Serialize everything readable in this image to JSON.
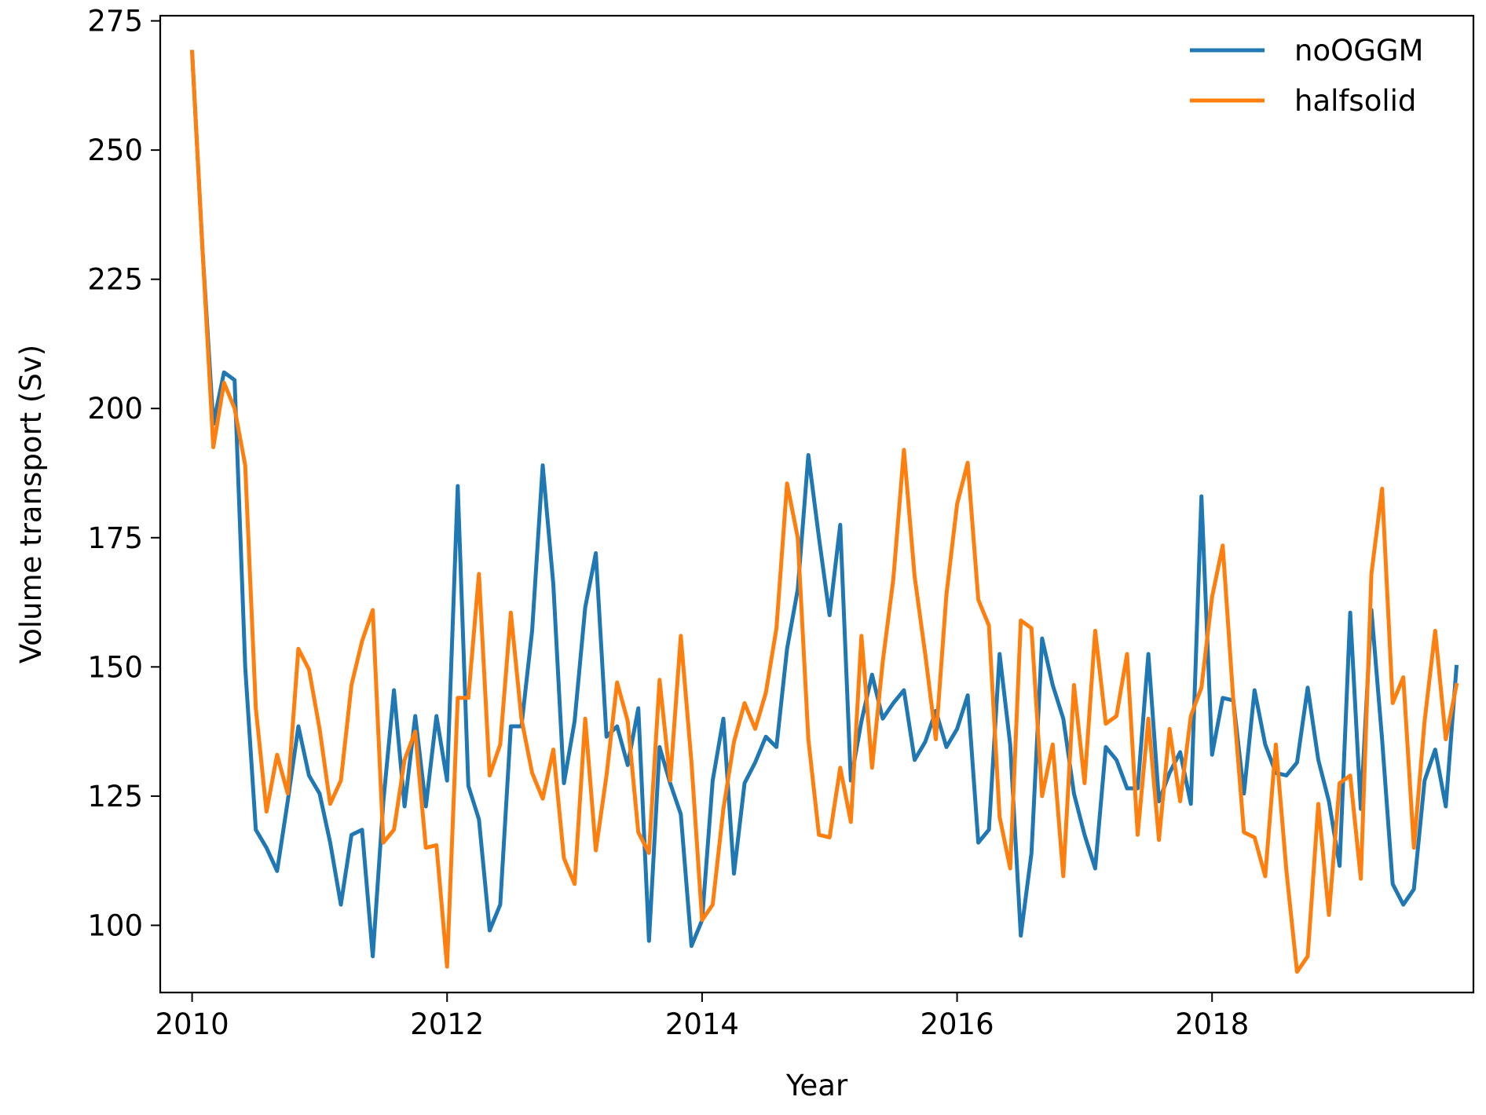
{
  "chart_data": {
    "type": "line",
    "xlabel": "Year",
    "ylabel": "Volume transport (Sv)",
    "xlim": [
      2009.75,
      2020.05
    ],
    "ylim": [
      87,
      276
    ],
    "xticks": [
      2010,
      2012,
      2014,
      2016,
      2018
    ],
    "yticks": [
      100,
      125,
      150,
      175,
      200,
      225,
      250,
      275
    ],
    "legend": "top-right",
    "grid": false,
    "x_start": 2010.0,
    "x_step_months": 1,
    "series": [
      {
        "name": "noOGGM",
        "color": "#1f77b4",
        "values": [
          269,
          230,
          197,
          207,
          205.5,
          150,
          118.5,
          115,
          110.5,
          124,
          138.5,
          129,
          125.5,
          116,
          104,
          117.5,
          118.5,
          94,
          124,
          145.5,
          123,
          140.5,
          123,
          140.5,
          128,
          185,
          127,
          120.5,
          99,
          104,
          138.5,
          138.5,
          157,
          189,
          166,
          127.5,
          139.5,
          161.5,
          172,
          136.5,
          138.5,
          131,
          142,
          97,
          134.5,
          127.5,
          121.5,
          96,
          101,
          128,
          140,
          110,
          127.5,
          131.5,
          136.5,
          134.5,
          153.5,
          165,
          191,
          175,
          160,
          177.5,
          128,
          139.5,
          148.5,
          140,
          143,
          145.5,
          132,
          135.5,
          141.5,
          134.5,
          138,
          144.5,
          116,
          118.5,
          152.5,
          135,
          98,
          114,
          155.5,
          146.5,
          140,
          125.5,
          117.5,
          111,
          134.5,
          132,
          126.5,
          126.5,
          152.5,
          124,
          129.5,
          133.5,
          123.5,
          183,
          133,
          144,
          143.5,
          125.5,
          145.5,
          135,
          129.5,
          129,
          131.5,
          146,
          132,
          124,
          111.5,
          160.5,
          122.5,
          161,
          136,
          108,
          104,
          107,
          128,
          134,
          123,
          150
        ]
      },
      {
        "name": "halfsolid",
        "color": "#ff7f0e",
        "values": [
          269,
          230,
          192.5,
          205,
          200,
          189,
          142,
          122,
          133,
          125.5,
          153.5,
          149.5,
          138,
          123.5,
          128,
          146.5,
          155,
          161,
          116,
          118.5,
          132,
          137.5,
          115,
          115.5,
          92,
          144,
          144,
          168,
          129,
          135,
          160.5,
          140,
          129.5,
          124.5,
          134,
          113,
          108,
          140,
          114.5,
          129,
          147,
          139.5,
          118,
          114,
          147.5,
          128,
          156,
          131.5,
          101,
          104,
          122.5,
          135.5,
          143,
          138,
          145,
          157.5,
          185.5,
          175,
          136,
          117.5,
          117,
          130.5,
          120,
          156,
          130.5,
          151,
          167,
          192,
          167.5,
          152.5,
          136,
          164,
          181.5,
          189.5,
          163,
          158,
          121,
          111,
          159,
          157.5,
          125,
          135,
          109.5,
          146.5,
          127.5,
          157,
          139,
          140.5,
          152.5,
          117.5,
          140,
          116.5,
          138,
          124,
          140.5,
          146,
          163.5,
          173.5,
          143.5,
          118,
          117,
          109.5,
          135,
          110.5,
          91,
          94,
          123.5,
          102,
          127.5,
          129,
          109,
          168,
          184.5,
          143,
          148,
          115,
          139.5,
          157,
          136,
          146.5
        ]
      }
    ]
  }
}
